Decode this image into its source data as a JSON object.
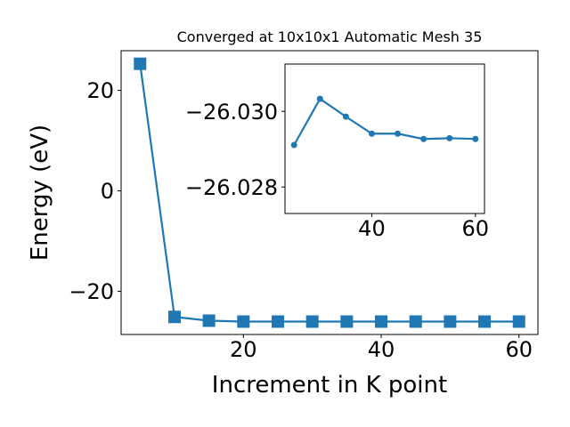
{
  "chart_data": [
    {
      "type": "line",
      "title": "Converged at 10x10x1 Automatic Mesh 35",
      "x_label": "Increment in K point",
      "y_label": "Energy (eV)",
      "x": [
        5,
        10,
        15,
        20,
        25,
        30,
        35,
        40,
        45,
        50,
        55,
        60
      ],
      "series": [
        {
          "color": "#1f77b4",
          "marker": "square",
          "values": [
            25.3,
            -25.1,
            -25.85,
            -26.03,
            -26.0291,
            -26.0303,
            -26.0299,
            -26.0294,
            -26.0294,
            -26.0293,
            -26.0293,
            -26.0293
          ]
        }
      ],
      "xlim": [
        2.25,
        62.75
      ],
      "ylim": [
        -28.6,
        27.9
      ],
      "xticks": [
        20,
        40,
        60
      ],
      "yticks": [
        {
          "value": -20,
          "label": "−20"
        },
        0,
        20
      ]
    },
    {
      "type": "line",
      "x": [
        25,
        30,
        35,
        40,
        45,
        50,
        55,
        60
      ],
      "series": [
        {
          "color": "#1f77b4",
          "marker": "circle",
          "values": [
            -26.02911,
            -26.03033,
            -26.02986,
            -26.02941,
            -26.02941,
            -26.02927,
            -26.02929,
            -26.02927
          ]
        }
      ],
      "xlim": [
        23.25,
        61.75
      ],
      "ylim": [
        -26.0273,
        -26.03125
      ],
      "xticks": [
        40,
        60
      ],
      "yticks": [
        {
          "value": -26.028,
          "label": "−26.028"
        },
        {
          "value": -26.03,
          "label": "−26.030"
        }
      ]
    }
  ]
}
